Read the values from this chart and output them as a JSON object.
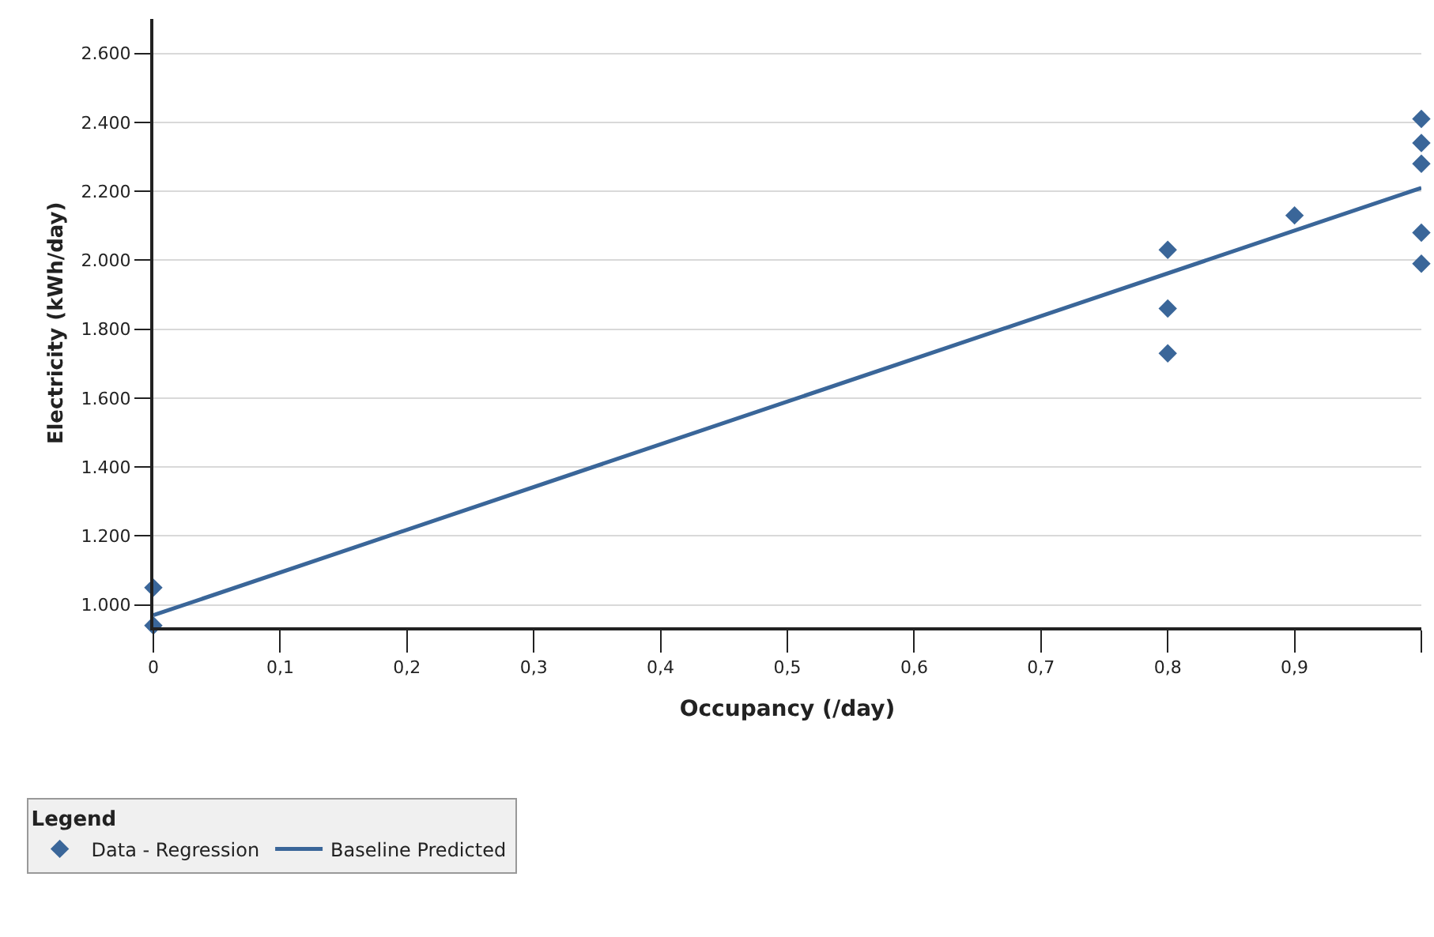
{
  "chart_data": {
    "type": "scatter",
    "xlabel": "Occupancy (/day)",
    "ylabel": "Electricity (kWh/day)",
    "legend_title": "Legend",
    "legend": "bottom",
    "grid": "y",
    "marker": "diamond",
    "xlim": [
      0,
      1.0
    ],
    "ylim": [
      935,
      2700
    ],
    "xticks": [
      {
        "value": 0,
        "label": "0"
      },
      {
        "value": 0.1,
        "label": "0,1"
      },
      {
        "value": 0.2,
        "label": "0,2"
      },
      {
        "value": 0.3,
        "label": "0,3"
      },
      {
        "value": 0.4,
        "label": "0,4"
      },
      {
        "value": 0.5,
        "label": "0,5"
      },
      {
        "value": 0.6,
        "label": "0,6"
      },
      {
        "value": 0.7,
        "label": "0,7"
      },
      {
        "value": 0.8,
        "label": "0,8"
      },
      {
        "value": 0.9,
        "label": "0,9"
      },
      {
        "value": 1.0,
        "label": null
      }
    ],
    "yticks": [
      {
        "value": 1000,
        "label": "1.000"
      },
      {
        "value": 1200,
        "label": "1.200"
      },
      {
        "value": 1400,
        "label": "1.400"
      },
      {
        "value": 1600,
        "label": "1.600"
      },
      {
        "value": 1800,
        "label": "1.800"
      },
      {
        "value": 2000,
        "label": "2.000"
      },
      {
        "value": 2200,
        "label": "2.200"
      },
      {
        "value": 2400,
        "label": "2.400"
      },
      {
        "value": 2600,
        "label": "2.600"
      }
    ],
    "series": [
      {
        "name": "Data - Regression",
        "color": "#3a6699",
        "x": [
          0,
          0,
          0.8,
          0.8,
          0.8,
          0.9,
          1.0,
          1.0,
          1.0,
          1.0,
          1.0
        ],
        "values": [
          1050,
          940,
          2030,
          1860,
          1730,
          2130,
          2410,
          2340,
          2280,
          2080,
          1990
        ]
      },
      {
        "name": "Baseline Predicted",
        "type": "line",
        "marker": "none",
        "color": "#3a6699",
        "x": [
          0,
          1.0
        ],
        "values": [
          970,
          2210
        ]
      }
    ]
  }
}
